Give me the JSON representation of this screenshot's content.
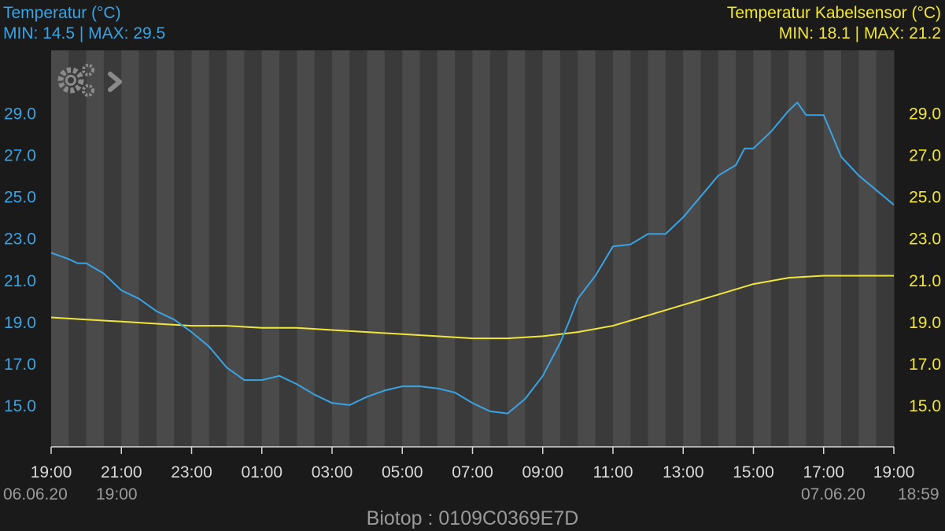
{
  "header": {
    "left_title": "Temperatur (°C)",
    "left_minmax": "MIN: 14.5 | MAX: 29.5",
    "right_title": "Temperatur Kabelsensor (°C)",
    "right_minmax": "MIN: 18.1 | MAX: 21.2"
  },
  "footer": {
    "start_date": "06.06.20",
    "start_time": "19:00",
    "end_date": "07.06.20",
    "end_time": "18:59",
    "device_label": "Biotop  : 0109C0369E7D"
  },
  "icons": [
    "gears-icon",
    "chevron-right-icon"
  ],
  "colors": {
    "background": "#1a1a1a",
    "stripe_dark": "#3a3a3a",
    "stripe_light": "#4a4a4a",
    "series_1": "#3aa3e3",
    "series_2": "#f0e63a",
    "axis_text": "#d8d8d8"
  },
  "chart_data": {
    "type": "line",
    "x_unit": "hours since 06.06.20 19:00",
    "xlim": [
      0,
      24
    ],
    "x_tick_labels": [
      "19:00",
      "21:00",
      "23:00",
      "01:00",
      "03:00",
      "05:00",
      "07:00",
      "09:00",
      "11:00",
      "13:00",
      "15:00",
      "17:00",
      "19:00"
    ],
    "ylim_left": [
      13.0,
      32.0
    ],
    "ylim_right": [
      13.0,
      32.0
    ],
    "y_ticks_left": [
      "15.0",
      "17.0",
      "19.0",
      "21.0",
      "23.0",
      "25.0",
      "27.0",
      "29.0"
    ],
    "y_ticks_right": [
      "15.0",
      "17.0",
      "19.0",
      "21.0",
      "23.0",
      "25.0",
      "27.0",
      "29.0"
    ],
    "grid": "alternating vertical stripes",
    "series": [
      {
        "axis": "left",
        "x": [
          0,
          0.5,
          0.75,
          1.0,
          1.5,
          2.0,
          2.5,
          3.0,
          3.5,
          4.0,
          4.5,
          5.0,
          5.5,
          6.0,
          6.5,
          7.0,
          7.5,
          8.0,
          8.5,
          9.0,
          9.5,
          10.0,
          10.5,
          11.0,
          11.5,
          12.0,
          12.5,
          13.0,
          13.5,
          14.0,
          14.5,
          14.75,
          15.0,
          15.5,
          16.0,
          16.5,
          17.0,
          17.5,
          18.0,
          18.5,
          19.0,
          19.5,
          19.75,
          20.0,
          20.5,
          21.0,
          21.25,
          21.5,
          22.0,
          22.5,
          23.0,
          23.5,
          24.0
        ],
        "y": [
          22.3,
          22.0,
          21.8,
          21.8,
          21.3,
          20.5,
          20.1,
          19.5,
          19.1,
          18.5,
          17.8,
          16.8,
          16.2,
          16.2,
          16.4,
          16.0,
          15.5,
          15.1,
          15.0,
          15.4,
          15.7,
          15.9,
          15.9,
          15.8,
          15.6,
          15.1,
          14.7,
          14.6,
          15.3,
          16.4,
          18.0,
          19.0,
          20.1,
          21.2,
          22.6,
          22.7,
          23.2,
          23.2,
          24.0,
          25.0,
          26.0,
          26.5,
          27.3,
          27.3,
          28.1,
          29.1,
          29.5,
          28.9,
          28.9,
          26.9,
          26.0,
          25.3,
          24.6
        ]
      },
      {
        "axis": "right",
        "x": [
          0,
          1.0,
          2.0,
          3.0,
          4.0,
          5.0,
          6.0,
          7.0,
          8.0,
          9.0,
          10.0,
          11.0,
          12.0,
          13.0,
          14.0,
          15.0,
          16.0,
          17.0,
          18.0,
          19.0,
          20.0,
          21.0,
          22.0,
          23.0,
          24.0
        ],
        "y": [
          19.2,
          19.1,
          19.0,
          18.9,
          18.8,
          18.8,
          18.7,
          18.7,
          18.6,
          18.5,
          18.4,
          18.3,
          18.2,
          18.2,
          18.3,
          18.5,
          18.8,
          19.3,
          19.8,
          20.3,
          20.8,
          21.1,
          21.2,
          21.2,
          21.2
        ]
      }
    ]
  }
}
